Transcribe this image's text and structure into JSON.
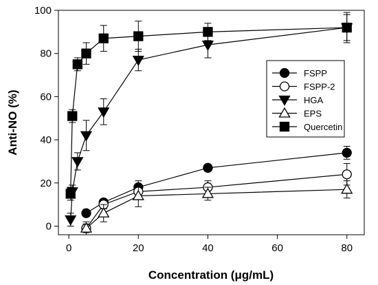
{
  "chart_data": {
    "type": "line",
    "title": "",
    "xlabel": "Concentration (μg/mL)",
    "ylabel": "Anti-NO (%)",
    "xlim": [
      -3,
      85
    ],
    "ylim": [
      -4,
      100
    ],
    "x_ticks": [
      0,
      20,
      40,
      60,
      80
    ],
    "y_ticks": [
      0,
      20,
      40,
      60,
      80,
      100
    ],
    "grid": false,
    "legend_position": "right",
    "series": [
      {
        "name": "FSPP",
        "marker": "circle-filled",
        "points": [
          {
            "x": 5,
            "y": 6,
            "err": 1
          },
          {
            "x": 10,
            "y": 11,
            "err": 1
          },
          {
            "x": 20,
            "y": 18,
            "err": 3
          },
          {
            "x": 40,
            "y": 27,
            "err": 1
          },
          {
            "x": 80,
            "y": 34,
            "err": 3
          }
        ]
      },
      {
        "name": "FSPP-2",
        "marker": "circle-open",
        "points": [
          {
            "x": 5,
            "y": -1,
            "err": 2
          },
          {
            "x": 10,
            "y": 10,
            "err": 2
          },
          {
            "x": 20,
            "y": 16,
            "err": 3
          },
          {
            "x": 40,
            "y": 18,
            "err": 3
          },
          {
            "x": 80,
            "y": 24,
            "err": 5
          }
        ]
      },
      {
        "name": "HGA",
        "marker": "triangle-down-filled",
        "points": [
          {
            "x": 0.5,
            "y": 3,
            "err": 3
          },
          {
            "x": 1,
            "y": 16,
            "err": 3
          },
          {
            "x": 2.5,
            "y": 30,
            "err": 4
          },
          {
            "x": 5,
            "y": 42,
            "err": 7
          },
          {
            "x": 10,
            "y": 53,
            "err": 6
          },
          {
            "x": 20,
            "y": 77,
            "err": 5
          },
          {
            "x": 40,
            "y": 84,
            "err": 6
          },
          {
            "x": 80,
            "y": 92,
            "err": 6
          }
        ]
      },
      {
        "name": "EPS",
        "marker": "triangle-up-open",
        "points": [
          {
            "x": 5,
            "y": -1,
            "err": 3
          },
          {
            "x": 10,
            "y": 6,
            "err": 4
          },
          {
            "x": 20,
            "y": 14,
            "err": 5
          },
          {
            "x": 40,
            "y": 15,
            "err": 3
          },
          {
            "x": 80,
            "y": 17,
            "err": 4
          }
        ]
      },
      {
        "name": "Quercetin",
        "marker": "square-filled",
        "points": [
          {
            "x": 0.5,
            "y": 15,
            "err": 3
          },
          {
            "x": 1,
            "y": 51,
            "err": 3
          },
          {
            "x": 2.5,
            "y": 75,
            "err": 3
          },
          {
            "x": 5,
            "y": 80,
            "err": 5
          },
          {
            "x": 10,
            "y": 87,
            "err": 6
          },
          {
            "x": 20,
            "y": 88,
            "err": 7
          },
          {
            "x": 40,
            "y": 90,
            "err": 4
          },
          {
            "x": 80,
            "y": 92,
            "err": 7
          }
        ]
      }
    ]
  }
}
